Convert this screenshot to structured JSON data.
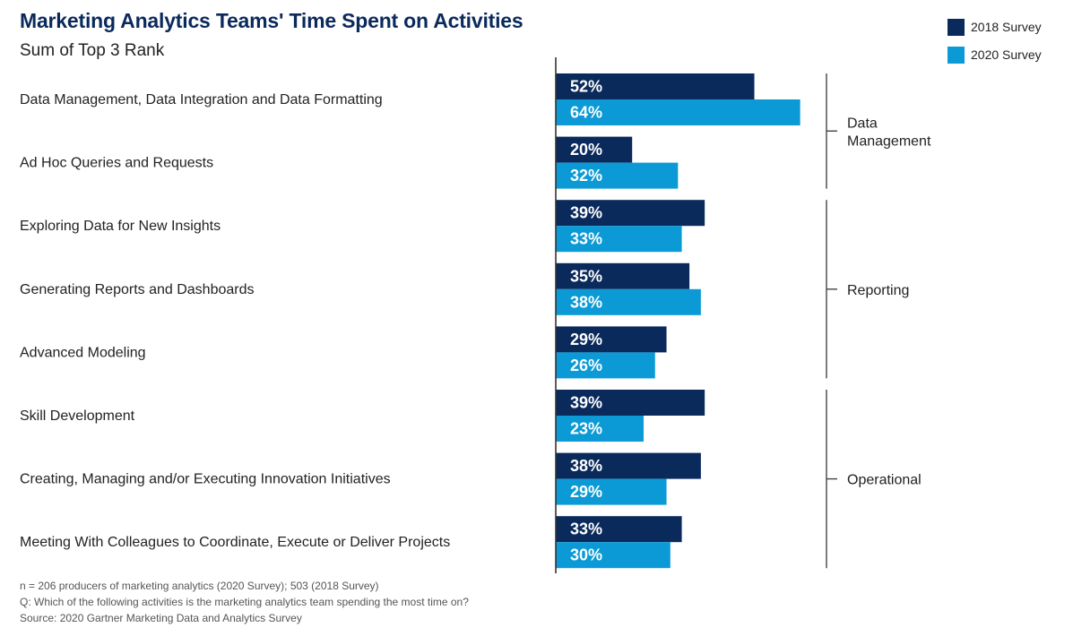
{
  "colors": {
    "series_2018": "#0a2a5c",
    "series_2020": "#0b9ad6",
    "axis": "#333333",
    "bracket": "#444444"
  },
  "chart_data": {
    "type": "bar",
    "orientation": "horizontal",
    "title": "Marketing Analytics Teams' Time Spent on Activities",
    "subtitle": "Sum of Top 3 Rank",
    "value_format": "percent",
    "xlim": [
      0,
      100
    ],
    "grid": false,
    "legend_position": "top-right",
    "categories": [
      "Data Management, Data Integration and Data Formatting",
      "Ad Hoc Queries and Requests",
      "Exploring Data for New Insights",
      "Generating Reports and Dashboards",
      "Advanced Modeling",
      "Skill Development",
      "Creating, Managing and/or Executing Innovation Initiatives",
      "Meeting With Colleagues to Coordinate, Execute or Deliver Projects"
    ],
    "series": [
      {
        "name": "2018 Survey",
        "values": [
          52,
          20,
          39,
          35,
          29,
          39,
          38,
          33
        ]
      },
      {
        "name": "2020 Survey",
        "values": [
          64,
          32,
          33,
          38,
          26,
          23,
          29,
          30
        ]
      }
    ],
    "groups": [
      {
        "label": "Data Management",
        "start": 0,
        "end": 1
      },
      {
        "label": "Reporting",
        "start": 2,
        "end": 4
      },
      {
        "label": "Operational",
        "start": 5,
        "end": 7
      }
    ]
  },
  "notes": [
    "n = 206 producers of marketing analytics (2020 Survey); 503 (2018 Survey)",
    "Q: Which of the following activities is the marketing analytics team spending the most time on?",
    "Source: 2020 Gartner Marketing Data and Analytics Survey"
  ]
}
